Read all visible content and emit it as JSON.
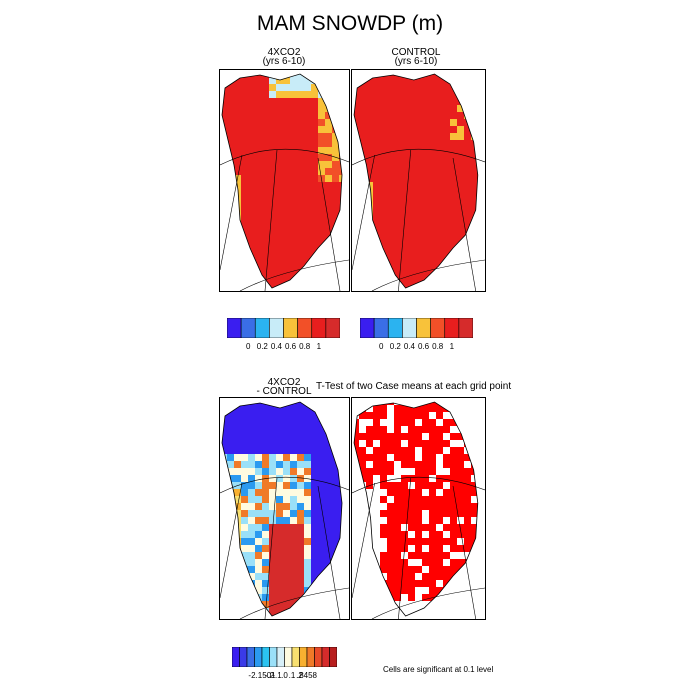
{
  "figure": {
    "title": "MAM SNOWDP (m)",
    "panels": [
      {
        "title_line1": "4XCO2",
        "title_line2": "(yrs 6-10)"
      },
      {
        "title_line1": "CONTROL",
        "title_line2": "(yrs 6-10)"
      },
      {
        "title_line1": "4XCO2",
        "title_line2": "- CONTROL"
      },
      {
        "title_line1": "T-Test of two Case means at each grid point",
        "title_line2": ""
      }
    ],
    "significance_note": "Cells are significant at 0.1 level"
  },
  "colorbars": {
    "absolute": {
      "colors": [
        "#3a1ef0",
        "#3a6ee6",
        "#2bb3f0",
        "#c8ecf8",
        "#f8c23a",
        "#f25028",
        "#e81e1e",
        "#d62b2b"
      ],
      "tick_labels": [
        "0",
        "0.2",
        "0.4",
        "0.6",
        "0.8",
        "1"
      ]
    },
    "difference": {
      "colors": [
        "#3a1ef0",
        "#3a3ae8",
        "#3a6ee6",
        "#2b9af0",
        "#2bc3f0",
        "#9ae0f8",
        "#d8f0f8",
        "#fffbe0",
        "#f8e070",
        "#f8b030",
        "#f07a28",
        "#e84a28",
        "#d62b2b",
        "#b81e1e"
      ],
      "tick_labels": [
        "-2.1501",
        "-.2",
        "-.1",
        ".0",
        ".1",
        ".2",
        ".8458"
      ]
    }
  },
  "chart_data": [
    {
      "type": "heatmap",
      "title": "4XCO2 (yrs 6-10)",
      "variable": "MAM SNOWDP (m)",
      "region": "Greenland",
      "colorbar_levels": [
        0,
        0.2,
        0.4,
        0.6,
        0.8,
        1
      ],
      "summary": "interior ice sheet >= 1 m (dark red); margins 0.6-1 m (light blue/orange), esp. north and east coast"
    },
    {
      "type": "heatmap",
      "title": "CONTROL (yrs 6-10)",
      "variable": "MAM SNOWDP (m)",
      "region": "Greenland",
      "colorbar_levels": [
        0,
        0.2,
        0.4,
        0.6,
        0.8,
        1
      ],
      "summary": "nearly all land >= 1 m (dark red); orange/yellow 0.8 m at coastal margins"
    },
    {
      "type": "heatmap",
      "title": "4XCO2 - CONTROL",
      "variable": "MAM SNOWDP difference (m)",
      "region": "Greenland",
      "colorbar_levels": [
        -2.1501,
        -0.2,
        -0.1,
        0.0,
        0.1,
        0.2,
        0.8458
      ],
      "range": [
        -2.1501,
        0.8458
      ],
      "summary": "strong decreases (blue) along east and north margins; increases (red) in west-central interior"
    },
    {
      "type": "heatmap",
      "title": "T-Test of two Case means at each grid point",
      "significance_level": 0.1,
      "summary": "red cells significant at 0.1 level over most of the ice sheet"
    }
  ]
}
